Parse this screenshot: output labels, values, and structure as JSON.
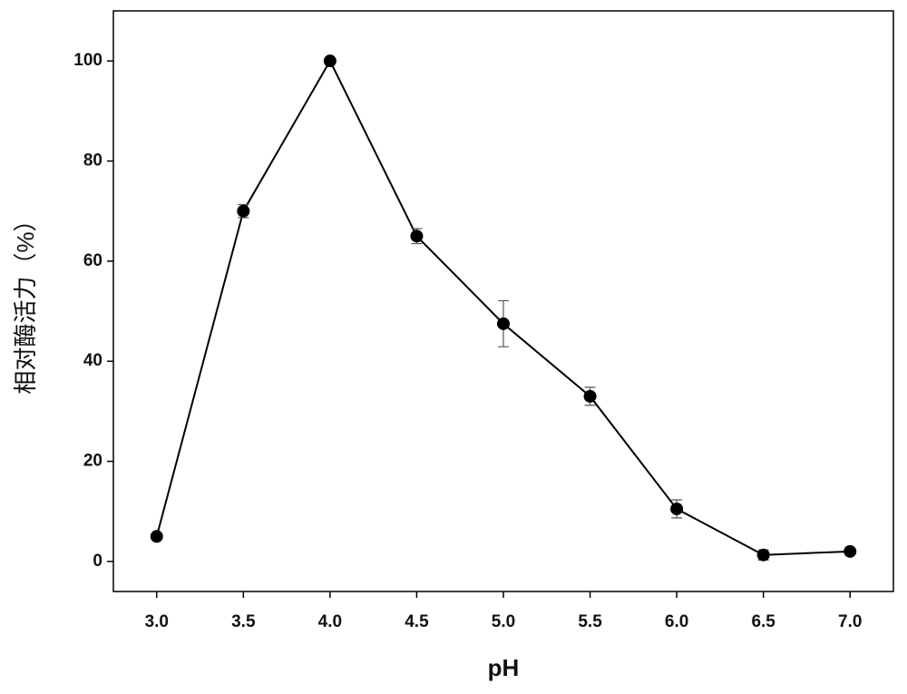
{
  "chart_data": {
    "type": "line",
    "x_label": "pH",
    "y_label": "相对酶活力（%）",
    "x": [
      3,
      3.5,
      4,
      4.5,
      5,
      5.5,
      6,
      6.5,
      7
    ],
    "series": [
      {
        "color": "#000000",
        "values": [
          5,
          70,
          100,
          65,
          47.5,
          33,
          10.5,
          1.3,
          2
        ],
        "errors": [
          0.5,
          1.3,
          0.5,
          1.5,
          4.6,
          1.8,
          1.8,
          1,
          0.5
        ]
      }
    ],
    "xlim": [
      2.75,
      7.25
    ],
    "ylim": [
      -6,
      110
    ],
    "xticks": [
      {
        "value": 3,
        "label": "3.0"
      },
      {
        "value": 3.5,
        "label": "3.5"
      },
      {
        "value": 4,
        "label": "4.0"
      },
      {
        "value": 4.5,
        "label": "4.5"
      },
      {
        "value": 5,
        "label": "5.0"
      },
      {
        "value": 5.5,
        "label": "5.5"
      },
      {
        "value": 6,
        "label": "6.0"
      },
      {
        "value": 6.5,
        "label": "6.5"
      },
      {
        "value": 7,
        "label": "7.0"
      }
    ],
    "yticks": [
      0,
      20,
      40,
      60,
      80,
      100
    ],
    "grid": false
  }
}
